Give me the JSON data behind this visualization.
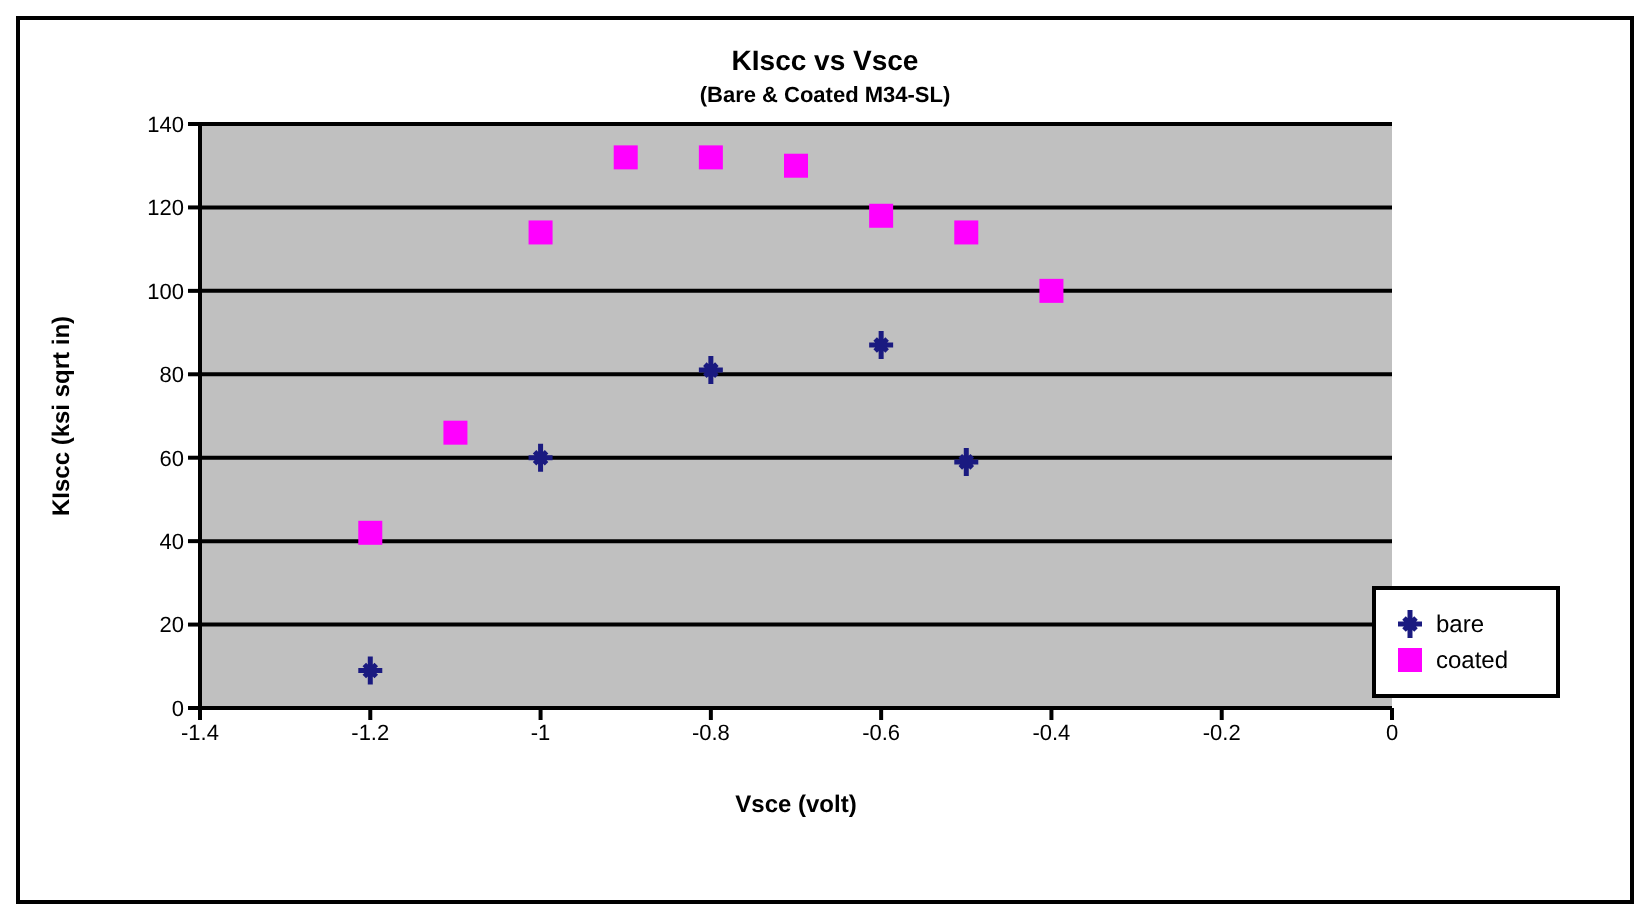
{
  "chart_data": {
    "type": "scatter",
    "title": "KIscc vs Vsce",
    "subtitle": "(Bare & Coated M34-SL)",
    "xlabel": "Vsce (volt)",
    "ylabel": "KIscc (ksi sqrt in)",
    "xlim": [
      -1.4,
      0
    ],
    "xticks": [
      -1.4,
      -1.2,
      -1,
      -0.8,
      -0.6,
      -0.4,
      -0.2,
      0
    ],
    "ylim": [
      0,
      140
    ],
    "yticks": [
      0,
      20,
      40,
      60,
      80,
      100,
      120,
      140
    ],
    "grid": "y",
    "legend": "bottom right",
    "series": [
      {
        "name": "bare",
        "color": "#1a1a80",
        "marker": "cross",
        "x": [
          -1.2,
          -1.0,
          -0.8,
          -0.6,
          -0.5
        ],
        "values": [
          9,
          60,
          81,
          87,
          59
        ]
      },
      {
        "name": "coated",
        "color": "#ff00ff",
        "marker": "square",
        "x": [
          -1.2,
          -1.1,
          -1.0,
          -0.9,
          -0.8,
          -0.7,
          -0.6,
          -0.5,
          -0.4
        ],
        "values": [
          42,
          66,
          114,
          132,
          132,
          130,
          118,
          114,
          100
        ]
      }
    ]
  }
}
